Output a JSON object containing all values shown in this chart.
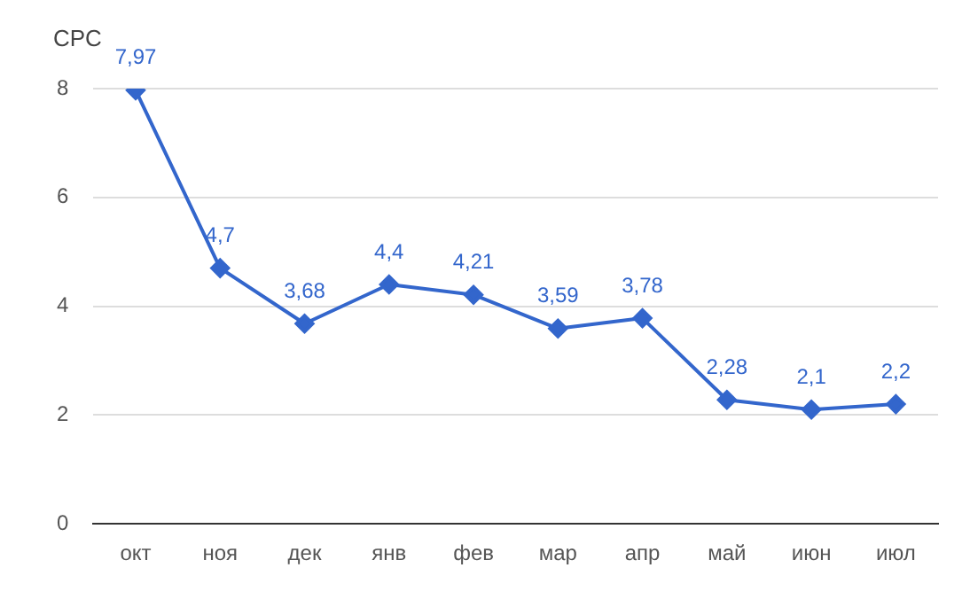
{
  "chart_data": {
    "type": "line",
    "ylabel": "CPC",
    "categories": [
      "окт",
      "ноя",
      "дек",
      "янв",
      "фев",
      "мар",
      "апр",
      "май",
      "июн",
      "июл"
    ],
    "series": [
      {
        "color": "#3366cc",
        "values": [
          7.97,
          4.7,
          3.68,
          4.4,
          4.21,
          3.59,
          3.78,
          2.28,
          2.1,
          2.2
        ],
        "value_labels": [
          "7,97",
          "4,7",
          "3,68",
          "4,4",
          "4,21",
          "3,59",
          "3,78",
          "2,28",
          "2,1",
          "2,2"
        ]
      }
    ],
    "ylim": [
      0,
      8
    ],
    "yticks": [
      0,
      2,
      4,
      6,
      8
    ],
    "grid": "y",
    "legend": false,
    "marker": "diamond",
    "line_style": "solid"
  }
}
